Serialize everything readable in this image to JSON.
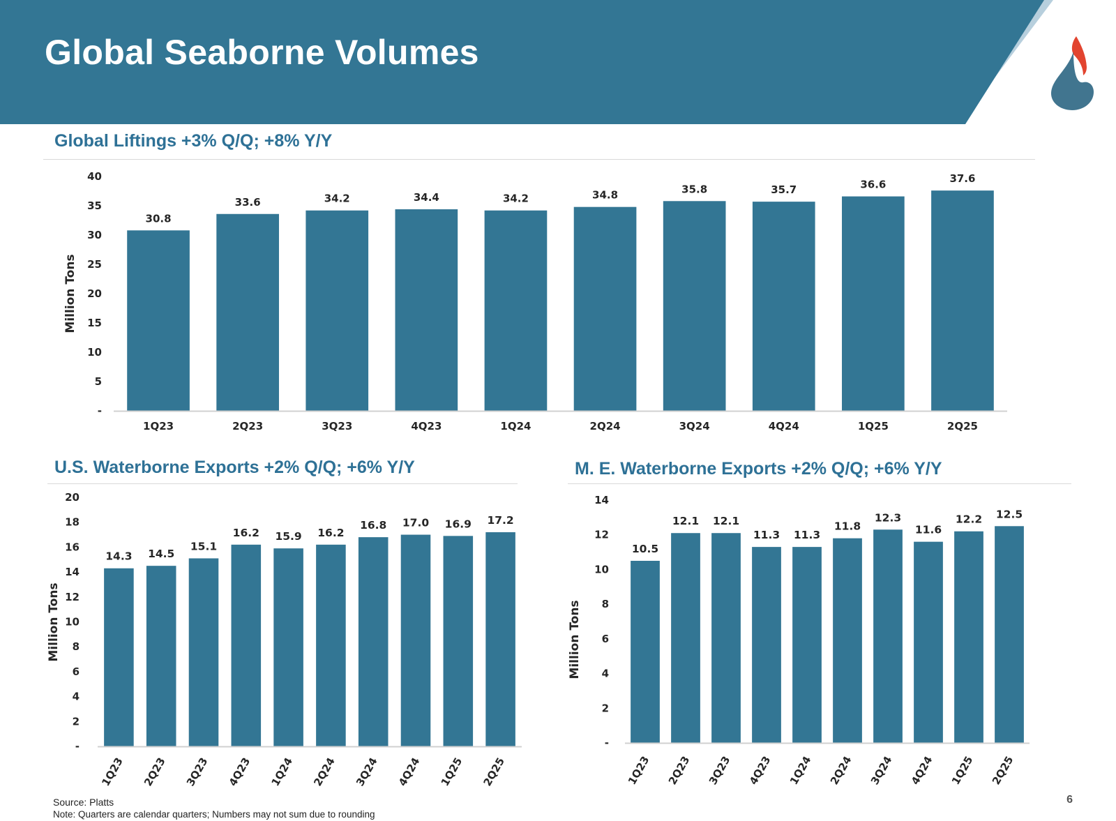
{
  "page": {
    "title": "Global Seaborne Volumes",
    "number": "6"
  },
  "colors": {
    "header": "#337694",
    "header_accent": "#b7cfdd",
    "bar": "#337694",
    "title_text": "#2e7196",
    "logo_flame": "#e2442f",
    "logo_drop": "#41758f"
  },
  "footer": {
    "source": "Source: Platts",
    "note": "Note: Quarters are calendar quarters; Numbers may not sum due to rounding"
  },
  "chart_data": [
    {
      "type": "bar",
      "title": "Global Liftings +3% Q/Q; +8% Y/Y",
      "xlabel": "",
      "ylabel": "Million Tons",
      "categories": [
        "1Q23",
        "2Q23",
        "3Q23",
        "4Q23",
        "1Q24",
        "2Q24",
        "3Q24",
        "4Q24",
        "1Q25",
        "2Q25"
      ],
      "values": [
        30.8,
        33.6,
        34.2,
        34.4,
        34.2,
        34.8,
        35.8,
        35.7,
        36.6,
        37.6
      ],
      "data_labels": [
        "30.8",
        "33.6",
        "34.2",
        "34.4",
        "34.2",
        "34.8",
        "35.8",
        "35.7",
        "36.6",
        "37.6"
      ],
      "ylim": [
        0,
        40
      ],
      "yticks": [
        0,
        5,
        10,
        15,
        20,
        25,
        30,
        35,
        40
      ],
      "ytick_labels": [
        "-",
        "5",
        "10",
        "15",
        "20",
        "25",
        "30",
        "35",
        "40"
      ],
      "grid": false,
      "legend": "none",
      "xtick_rotation": 0
    },
    {
      "type": "bar",
      "title": "U.S. Waterborne Exports +2% Q/Q; +6% Y/Y",
      "xlabel": "",
      "ylabel": "Million Tons",
      "categories": [
        "1Q23",
        "2Q23",
        "3Q23",
        "4Q23",
        "1Q24",
        "2Q24",
        "3Q24",
        "4Q24",
        "1Q25",
        "2Q25"
      ],
      "values": [
        14.3,
        14.5,
        15.1,
        16.2,
        15.9,
        16.2,
        16.8,
        17.0,
        16.9,
        17.2
      ],
      "data_labels": [
        "14.3",
        "14.5",
        "15.1",
        "16.2",
        "15.9",
        "16.2",
        "16.8",
        "17.0",
        "16.9",
        "17.2"
      ],
      "ylim": [
        0,
        20
      ],
      "yticks": [
        0,
        2,
        4,
        6,
        8,
        10,
        12,
        14,
        16,
        18,
        20
      ],
      "ytick_labels": [
        "-",
        "2",
        "4",
        "6",
        "8",
        "10",
        "12",
        "14",
        "16",
        "18",
        "20"
      ],
      "grid": false,
      "legend": "none",
      "xtick_rotation": -60
    },
    {
      "type": "bar",
      "title": "M. E. Waterborne Exports +2% Q/Q; +6% Y/Y",
      "xlabel": "",
      "ylabel": "Million Tons",
      "categories": [
        "1Q23",
        "2Q23",
        "3Q23",
        "4Q23",
        "1Q24",
        "2Q24",
        "3Q24",
        "4Q24",
        "1Q25",
        "2Q25"
      ],
      "values": [
        10.5,
        12.1,
        12.1,
        11.3,
        11.3,
        11.8,
        12.3,
        11.6,
        12.2,
        12.5
      ],
      "data_labels": [
        "10.5",
        "12.1",
        "12.1",
        "11.3",
        "11.3",
        "11.8",
        "12.3",
        "11.6",
        "12.2",
        "12.5"
      ],
      "ylim": [
        0,
        14
      ],
      "yticks": [
        0,
        2,
        4,
        6,
        8,
        10,
        12,
        14
      ],
      "ytick_labels": [
        "-",
        "2",
        "4",
        "6",
        "8",
        "10",
        "12",
        "14"
      ],
      "grid": false,
      "legend": "none",
      "xtick_rotation": -60
    }
  ]
}
